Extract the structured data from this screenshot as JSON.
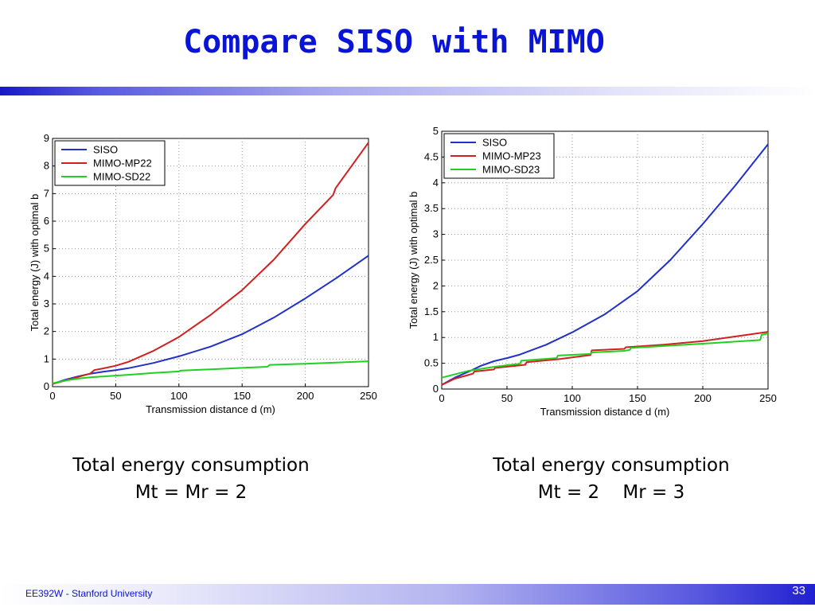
{
  "slide": {
    "title": "Compare SISO with MIMO",
    "footer": "EE392W - Stanford University",
    "page_number": "33"
  },
  "captions": {
    "left": {
      "line1": "Total energy consumption",
      "line2": "Mt = Mr = 2"
    },
    "right": {
      "line1": "Total energy consumption",
      "line2a": "Mt = 2",
      "line2b": "Mr = 3"
    }
  },
  "colors": {
    "siso": "#2030c8",
    "mimo_mp": "#d02020",
    "mimo_sd": "#20d020",
    "title": "#0a14d6"
  },
  "chart_data": [
    {
      "type": "line",
      "xlabel": "Transmission distance d (m)",
      "ylabel": "Total energy (J) with optimal b",
      "xlim": [
        0,
        250
      ],
      "ylim": [
        0,
        9
      ],
      "xticks": [
        0,
        50,
        100,
        150,
        200,
        250
      ],
      "yticks": [
        0,
        1,
        2,
        3,
        4,
        5,
        6,
        7,
        8,
        9
      ],
      "grid": true,
      "legend_position": "top-left",
      "series": [
        {
          "name": "SISO",
          "color": "#2030c8",
          "x": [
            0,
            10,
            20,
            30,
            40,
            50,
            60,
            80,
            100,
            125,
            150,
            175,
            200,
            225,
            250
          ],
          "y": [
            0.1,
            0.25,
            0.37,
            0.47,
            0.54,
            0.6,
            0.67,
            0.86,
            1.1,
            1.45,
            1.9,
            2.5,
            3.2,
            3.95,
            4.75
          ]
        },
        {
          "name": "MIMO-MP22",
          "color": "#d02020",
          "x": [
            0,
            10,
            20,
            30,
            33,
            40,
            50,
            60,
            80,
            100,
            125,
            150,
            175,
            200,
            222,
            224,
            250
          ],
          "y": [
            0.1,
            0.22,
            0.35,
            0.48,
            0.6,
            0.66,
            0.76,
            0.9,
            1.3,
            1.8,
            2.6,
            3.5,
            4.6,
            5.9,
            6.95,
            7.2,
            8.85
          ]
        },
        {
          "name": "MIMO-SD22",
          "color": "#20d020",
          "x": [
            0,
            10,
            20,
            30,
            40,
            50,
            60,
            80,
            100,
            101,
            125,
            150,
            170,
            172,
            200,
            250
          ],
          "y": [
            0.12,
            0.22,
            0.29,
            0.34,
            0.37,
            0.4,
            0.43,
            0.5,
            0.55,
            0.58,
            0.63,
            0.68,
            0.72,
            0.79,
            0.83,
            0.92
          ]
        }
      ]
    },
    {
      "type": "line",
      "xlabel": "Transmission distance d (m)",
      "ylabel": "Total energy (J) with optimal b",
      "xlim": [
        0,
        250
      ],
      "ylim": [
        0,
        5
      ],
      "xticks": [
        0,
        50,
        100,
        150,
        200,
        250
      ],
      "yticks": [
        0,
        0.5,
        1,
        1.5,
        2,
        2.5,
        3,
        3.5,
        4,
        4.5,
        5
      ],
      "grid": true,
      "legend_position": "top-left",
      "series": [
        {
          "name": "SISO",
          "color": "#2030c8",
          "x": [
            0,
            10,
            20,
            30,
            40,
            50,
            60,
            80,
            100,
            125,
            150,
            175,
            200,
            225,
            250
          ],
          "y": [
            0.08,
            0.22,
            0.33,
            0.45,
            0.54,
            0.6,
            0.67,
            0.86,
            1.1,
            1.45,
            1.9,
            2.5,
            3.2,
            3.95,
            4.75
          ]
        },
        {
          "name": "MIMO-MP23",
          "color": "#d02020",
          "x": [
            0,
            10,
            20,
            24,
            25,
            40,
            41,
            64,
            65,
            90,
            114,
            115,
            140,
            141,
            170,
            200,
            250
          ],
          "y": [
            0.08,
            0.2,
            0.27,
            0.3,
            0.34,
            0.38,
            0.41,
            0.47,
            0.52,
            0.58,
            0.66,
            0.75,
            0.78,
            0.81,
            0.86,
            0.93,
            1.11
          ]
        },
        {
          "name": "MIMO-SD23",
          "color": "#20d020",
          "x": [
            0,
            20,
            40,
            60,
            61,
            88,
            89,
            114,
            115,
            140,
            144,
            145,
            200,
            244,
            245,
            250
          ],
          "y": [
            0.22,
            0.35,
            0.43,
            0.49,
            0.55,
            0.6,
            0.65,
            0.68,
            0.71,
            0.74,
            0.76,
            0.8,
            0.88,
            0.95,
            1.05,
            1.08
          ]
        }
      ]
    }
  ]
}
